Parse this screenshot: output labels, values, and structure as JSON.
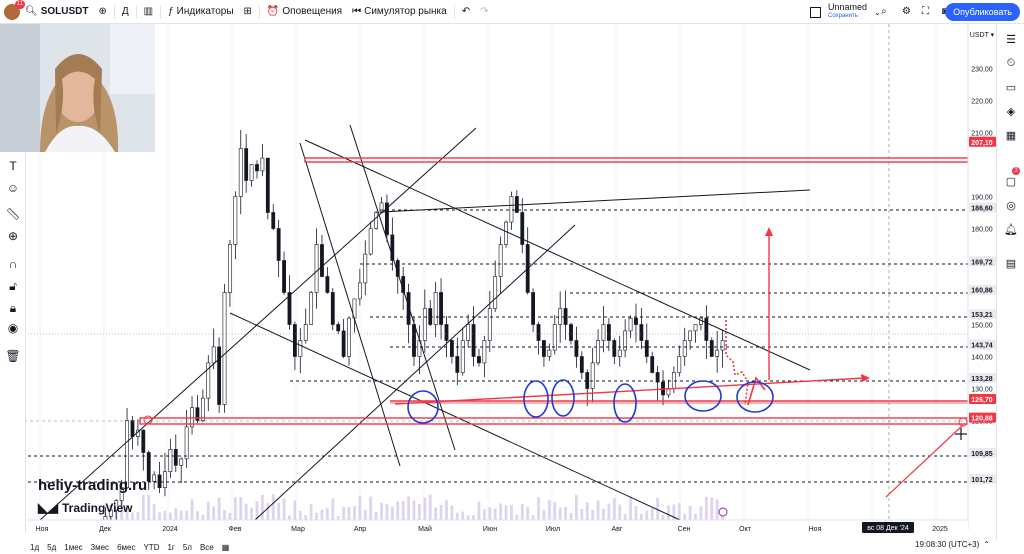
{
  "header": {
    "avatar_badge": "11",
    "symbol": "SOLUSDT",
    "interval": "Д",
    "indicators": "Индикаторы",
    "alerts": "Оповещения",
    "replay": "Симулятор рынка",
    "layout_name": "Unnamed",
    "layout_status": "Сохранить",
    "publish": "Опубликовать"
  },
  "price_axis": {
    "currency": "USDT",
    "ticks": [
      "230,00",
      "220,00",
      "210,00",
      "190,00",
      "180,00",
      "150,00",
      "140,00",
      "130,00",
      "120,00"
    ],
    "labels": [
      {
        "value": "207,10",
        "color": "#f23645",
        "text_color": "#ffffff"
      },
      {
        "value": "186,60",
        "color": "#e9ebef",
        "text_color": "#131722"
      },
      {
        "value": "169,72",
        "color": "#e9ebef",
        "text_color": "#131722"
      },
      {
        "value": "160,86",
        "color": "#e9ebef",
        "text_color": "#131722"
      },
      {
        "value": "153,21",
        "color": "#e9ebef",
        "text_color": "#131722"
      },
      {
        "value": "143,74",
        "color": "#e9ebef",
        "text_color": "#131722"
      },
      {
        "value": "133,28",
        "color": "#e9ebef",
        "text_color": "#131722"
      },
      {
        "value": "126,70",
        "color": "#f23645",
        "text_color": "#ffffff"
      },
      {
        "value": "120,88",
        "color": "#f23645",
        "text_color": "#ffffff"
      },
      {
        "value": "109,85",
        "color": "#e9ebef",
        "text_color": "#131722"
      },
      {
        "value": "101,72",
        "color": "#e9ebef",
        "text_color": "#131722"
      }
    ]
  },
  "time_axis": {
    "ticks": [
      "Ноя",
      "Дек",
      "2024",
      "Фев",
      "Мар",
      "Апр",
      "Май",
      "Июн",
      "Июл",
      "Авг",
      "Сен",
      "Окт",
      "Ноя",
      "2025"
    ],
    "cursor_label": "вс 08 Дек '24"
  },
  "bottom": {
    "timeframes": [
      "1д",
      "5д",
      "1мес",
      "3мес",
      "6мес",
      "YTD",
      "1г",
      "5л",
      "Все"
    ],
    "clock": "19:08:30 (UTC+3)"
  },
  "watermark": {
    "site": "heliy-trading.ru",
    "brand": "TradingView"
  },
  "right_toolbar": {
    "alerts_badge": "3"
  },
  "colors": {
    "accent": "#2962ff",
    "annotation_red": "#f23645",
    "annotation_blue": "#1e3bd6",
    "candles": "#131722",
    "grid": "#f0f3fa"
  },
  "chart_data": {
    "type": "candlestick",
    "title": "",
    "ylim": [
      100,
      235
    ],
    "x": [
      "Ноя",
      "Дек",
      "2024",
      "Фев",
      "Мар",
      "Апр",
      "Май",
      "Июн",
      "Июл",
      "Авг",
      "Сен"
    ],
    "close_path": [
      88,
      90,
      92,
      95,
      99,
      120,
      115,
      117,
      110,
      101,
      103,
      99,
      104,
      111,
      106,
      108,
      118,
      124,
      120,
      127,
      138,
      143,
      125,
      160,
      175,
      190,
      205,
      195,
      200,
      198,
      202,
      185,
      180,
      170,
      160,
      150,
      140,
      145,
      150,
      160,
      175,
      165,
      160,
      150,
      148,
      140,
      152,
      158,
      163,
      172,
      180,
      185,
      188,
      178,
      170,
      165,
      160,
      150,
      140,
      145,
      155,
      150,
      160,
      150,
      145,
      140,
      135,
      145,
      150,
      140,
      138,
      145,
      155,
      165,
      175,
      182,
      190,
      185,
      175,
      160,
      150,
      145,
      140,
      142,
      150,
      155,
      150,
      145,
      140,
      135,
      130,
      138,
      145,
      150,
      145,
      140,
      142,
      148,
      152,
      150,
      145,
      140,
      135,
      132,
      128,
      130,
      135,
      140,
      145,
      148,
      150,
      152,
      145,
      140,
      142,
      145
    ]
  }
}
